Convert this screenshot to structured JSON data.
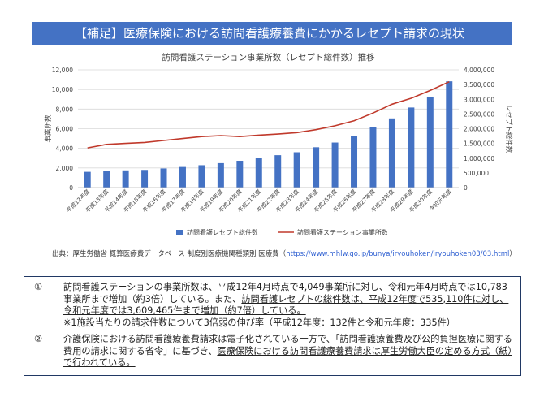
{
  "header": {
    "title": "【補足】医療保険における訪問看護療養費にかかるレセプト請求の現状"
  },
  "chart_data": {
    "type": "bar+line",
    "title": "訪問看護ステーション事業所数（レセプト総件数）推移",
    "categories": [
      "平成12年度",
      "平成13年度",
      "平成14年度",
      "平成15年度",
      "平成16年度",
      "平成17年度",
      "平成18年度",
      "平成19年度",
      "平成20年度",
      "平成21年度",
      "平成22年度",
      "平成23年度",
      "平成24年度",
      "平成25年度",
      "平成26年度",
      "平成27年度",
      "平成28年度",
      "平成29年度",
      "平成30年度",
      "令和元年度"
    ],
    "left_axis": {
      "label": "事業所数",
      "min": 0,
      "max": 12000,
      "ticks": [
        "0",
        "2,000",
        "4,000",
        "6,000",
        "8,000",
        "10,000",
        "12,000"
      ]
    },
    "right_axis": {
      "label": "レセプト総件数",
      "min": 0,
      "max": 4000000,
      "ticks": [
        "0",
        "500,000",
        "1,000,000",
        "1,500,000",
        "2,000,000",
        "2,500,000",
        "3,000,000",
        "3,500,000",
        "4,000,000"
      ]
    },
    "series": [
      {
        "name": "訪問看護レセプト総件数",
        "type": "bar",
        "axis": "right",
        "color": "#4472c4",
        "values": [
          535110,
          570000,
          585000,
          600000,
          650000,
          700000,
          760000,
          830000,
          910000,
          1000000,
          1100000,
          1200000,
          1370000,
          1530000,
          1760000,
          2050000,
          2350000,
          2720000,
          3090000,
          3609465
        ]
      },
      {
        "name": "訪問看護ステーション事業所数",
        "type": "line",
        "axis": "left",
        "color": "#c0392b",
        "values": [
          4049,
          4400,
          4500,
          4600,
          4800,
          5000,
          5200,
          5300,
          5200,
          5350,
          5450,
          5600,
          5900,
          6300,
          6800,
          7600,
          8500,
          9100,
          9900,
          10783
        ]
      }
    ],
    "legend_position": "bottom",
    "grid": true
  },
  "source": {
    "text": "出典：厚生労働省 概算医療費データベース 制度別医療機関種類別 医療費（",
    "url": "https://www.mhlw.go.jp/bunya/iryouhoken/iryouhoken03/03.html",
    "close": "）"
  },
  "notes": [
    {
      "num": "①",
      "lines": [
        "訪問看護ステーションの事業所数は、平成12年4月時点で4,049事業所に対し、令和元年4月時点では10,783事業所まで増加（約3倍）している。また、",
        "訪問看護レセプトの総件数は、平成12年度で535,110件に対し、令和元年度では3,609,465件まで増加（約7倍）している。",
        "※1施設当たりの請求件数について3倍弱の伸び率（平成12年度：132件と令和元年度：335件）"
      ]
    },
    {
      "num": "②",
      "lines": [
        "介護保険における訪問看護療養費請求は電子化されている一方で、「訪問看護療養費及び公的負担医療に関する費用の請求に関する省令」に基づき、",
        "医療保険における訪問看護療養費請求は厚生労働大臣の定める方式（紙）で行われている。"
      ]
    }
  ]
}
